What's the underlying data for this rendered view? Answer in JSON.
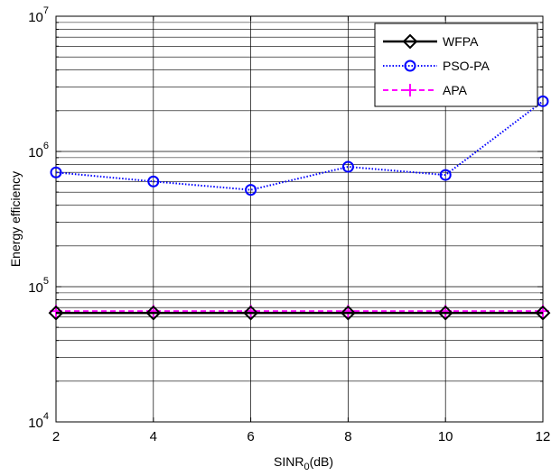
{
  "chart_data": {
    "type": "line",
    "xlabel": "SINR",
    "xlabel_subscript": "0",
    "xlabel_suffix": "(dB)",
    "ylabel": "Energy efficiency",
    "xlim": [
      2,
      12
    ],
    "ylim": [
      10000,
      10000000
    ],
    "yscale": "log",
    "grid": true,
    "legend_position": "top-right",
    "x_ticks": [
      "2",
      "4",
      "6",
      "8",
      "10",
      "12"
    ],
    "y_ticks": [
      {
        "base": "10",
        "exp": "4"
      },
      {
        "base": "10",
        "exp": "5"
      },
      {
        "base": "10",
        "exp": "6"
      },
      {
        "base": "10",
        "exp": "7"
      }
    ],
    "x": [
      2,
      4,
      6,
      8,
      10,
      12
    ],
    "series": [
      {
        "name": "WFPA",
        "values": [
          64000,
          64000,
          64000,
          64000,
          64000,
          64000
        ],
        "color": "#000000",
        "marker": "diamond",
        "line": "solid"
      },
      {
        "name": "PSO-PA",
        "values": [
          700000,
          600000,
          520000,
          770000,
          670000,
          2350000
        ],
        "color": "#0000ff",
        "marker": "circle",
        "line": "dotted"
      },
      {
        "name": "APA",
        "values": [
          66000,
          66000,
          66000,
          66000,
          66000,
          66000
        ],
        "color": "#ff00ff",
        "marker": "plus",
        "line": "dashed"
      }
    ]
  }
}
